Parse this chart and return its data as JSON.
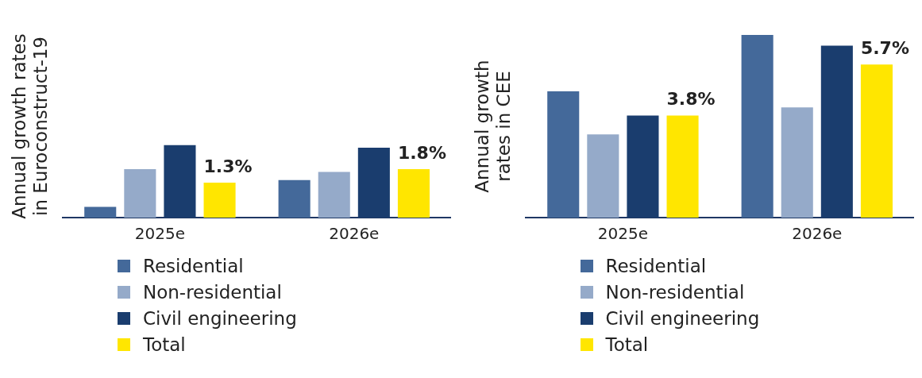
{
  "chart_data": [
    {
      "type": "bar",
      "ylabel": "Annual growth rates in Euroconstruct-19",
      "categories": [
        "2025e",
        "2026e"
      ],
      "legend": "bottom",
      "grid": false,
      "series": [
        {
          "name": "Residential",
          "color": "#44699a",
          "values": [
            0.4,
            1.4
          ]
        },
        {
          "name": "Non-residential",
          "color": "#95aac9",
          "values": [
            1.8,
            1.7
          ]
        },
        {
          "name": "Civil engineering",
          "color": "#1a3d6e",
          "values": [
            2.7,
            2.6
          ]
        },
        {
          "name": "Total",
          "color": "#ffe600",
          "values": [
            1.3,
            1.8
          ],
          "value_labels": [
            "1.3%",
            "1.8%"
          ]
        }
      ]
    },
    {
      "type": "bar",
      "ylabel": "Annual growth rates in CEE",
      "categories": [
        "2025e",
        "2026e"
      ],
      "legend": "bottom",
      "grid": false,
      "series": [
        {
          "name": "Residential",
          "color": "#44699a",
          "values": [
            4.7,
            6.8
          ]
        },
        {
          "name": "Non-residential",
          "color": "#95aac9",
          "values": [
            3.1,
            4.1
          ]
        },
        {
          "name": "Civil engineering",
          "color": "#1a3d6e",
          "values": [
            3.8,
            6.4
          ]
        },
        {
          "name": "Total",
          "color": "#ffe600",
          "values": [
            3.8,
            5.7
          ],
          "value_labels": [
            "3.8%",
            "5.7%"
          ]
        }
      ]
    }
  ]
}
